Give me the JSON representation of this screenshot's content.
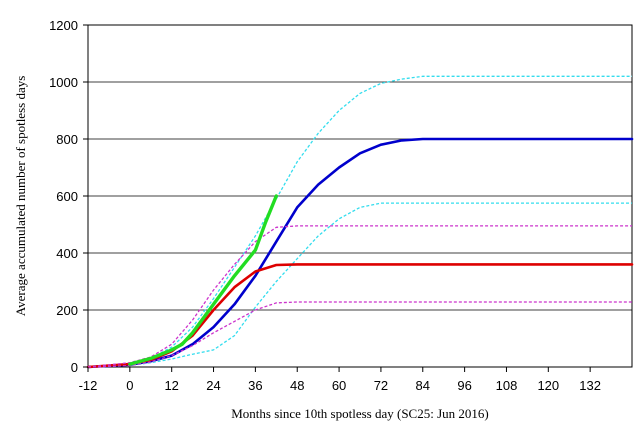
{
  "chart_data": {
    "type": "line",
    "xlabel": "Months since 10th spotless day (SC25: Jun 2016)",
    "ylabel": "Average accumulated number of spotless days",
    "xlim": [
      -12,
      144
    ],
    "ylim": [
      0,
      1200
    ],
    "x_ticks": [
      -12,
      0,
      12,
      24,
      36,
      48,
      60,
      72,
      84,
      96,
      108,
      120,
      132
    ],
    "y_ticks": [
      0,
      200,
      400,
      600,
      800,
      1000,
      1200
    ],
    "grid": true,
    "legend": "none",
    "series": [
      {
        "color": "#0000cc",
        "style": "solid",
        "width": 2.6,
        "x": [
          -12,
          0,
          6,
          12,
          18,
          24,
          30,
          36,
          42,
          48,
          54,
          60,
          66,
          72,
          78,
          84,
          90,
          96,
          108,
          120,
          132,
          144
        ],
        "y": [
          0,
          8,
          20,
          40,
          80,
          140,
          220,
          320,
          440,
          560,
          640,
          700,
          750,
          780,
          795,
          800,
          800,
          800,
          800,
          800,
          800,
          800
        ]
      },
      {
        "color": "#33ddee",
        "style": "dashed",
        "width": 1.3,
        "x": [
          -12,
          0,
          6,
          12,
          18,
          24,
          30,
          36,
          42,
          48,
          54,
          60,
          66,
          72,
          78,
          84,
          96,
          108,
          120,
          132,
          144
        ],
        "y": [
          0,
          10,
          30,
          70,
          140,
          240,
          350,
          460,
          590,
          720,
          820,
          900,
          960,
          995,
          1010,
          1020,
          1020,
          1020,
          1020,
          1020,
          1020
        ]
      },
      {
        "color": "#33ddee",
        "style": "dashed",
        "width": 1.3,
        "x": [
          -12,
          0,
          6,
          12,
          18,
          24,
          30,
          36,
          42,
          48,
          54,
          60,
          66,
          72,
          84,
          96,
          108,
          120,
          132,
          144
        ],
        "y": [
          0,
          5,
          15,
          28,
          45,
          60,
          110,
          210,
          300,
          380,
          460,
          520,
          560,
          575,
          575,
          575,
          575,
          575,
          575,
          575
        ]
      },
      {
        "color": "#dd0000",
        "style": "solid",
        "width": 2.6,
        "x": [
          -12,
          0,
          6,
          12,
          18,
          24,
          30,
          36,
          42,
          48,
          60,
          72,
          84,
          96,
          108,
          120,
          132,
          144
        ],
        "y": [
          0,
          10,
          25,
          55,
          110,
          200,
          280,
          335,
          358,
          360,
          360,
          360,
          360,
          360,
          360,
          360,
          360,
          360
        ]
      },
      {
        "color": "#cc33cc",
        "style": "dashed",
        "width": 1.3,
        "x": [
          -12,
          0,
          6,
          12,
          18,
          24,
          30,
          36,
          42,
          48,
          60,
          72,
          84,
          96,
          108,
          120,
          132,
          144
        ],
        "y": [
          0,
          15,
          35,
          80,
          165,
          270,
          360,
          440,
          490,
          495,
          495,
          495,
          495,
          495,
          495,
          495,
          495,
          495
        ]
      },
      {
        "color": "#cc33cc",
        "style": "dashed",
        "width": 1.3,
        "x": [
          -12,
          0,
          6,
          12,
          18,
          24,
          30,
          36,
          42,
          48,
          60,
          72,
          84,
          96,
          108,
          120,
          132,
          144
        ],
        "y": [
          0,
          5,
          18,
          40,
          75,
          120,
          160,
          200,
          225,
          228,
          228,
          228,
          228,
          228,
          228,
          228,
          228,
          228
        ]
      },
      {
        "color": "#22dd22",
        "style": "solid",
        "width": 3.4,
        "x": [
          0,
          6,
          12,
          15,
          18,
          24,
          30,
          36,
          39,
          42
        ],
        "y": [
          10,
          30,
          60,
          80,
          120,
          220,
          320,
          410,
          510,
          600
        ]
      }
    ]
  }
}
